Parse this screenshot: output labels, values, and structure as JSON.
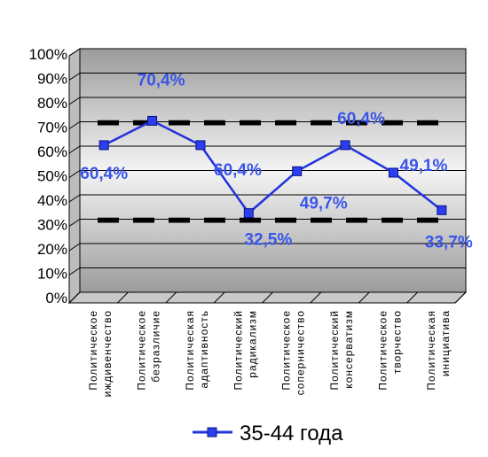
{
  "chart_data": {
    "type": "line",
    "categories": [
      [
        "Политическое",
        "иждивенчество"
      ],
      [
        "Политическое",
        "безразличие"
      ],
      [
        "Политическая",
        "адаптивность"
      ],
      [
        "Политический",
        "радикализм"
      ],
      [
        "Политическое",
        "соперничество"
      ],
      [
        "Политический",
        "консерватизм"
      ],
      [
        "Политическое",
        "творчество"
      ],
      [
        "Политическая",
        "инициатива"
      ]
    ],
    "series": [
      {
        "name": "35-44 года",
        "values": [
          60.4,
          70.4,
          60.4,
          32.5,
          49.7,
          60.4,
          49.1,
          33.7
        ],
        "data_labels": [
          "60,4%",
          "70,4%",
          "60,4%",
          "32,5%",
          "49,7%",
          "60,4%",
          "49,1%",
          "33,7%"
        ],
        "color": "#2233dd"
      }
    ],
    "reference_lines": [
      70,
      30
    ],
    "ylim": [
      0,
      100
    ],
    "yticks": [
      "0%",
      "10%",
      "20%",
      "30%",
      "40%",
      "50%",
      "60%",
      "70%",
      "80%",
      "90%",
      "100%"
    ],
    "grid": true,
    "legend": "bottom"
  }
}
